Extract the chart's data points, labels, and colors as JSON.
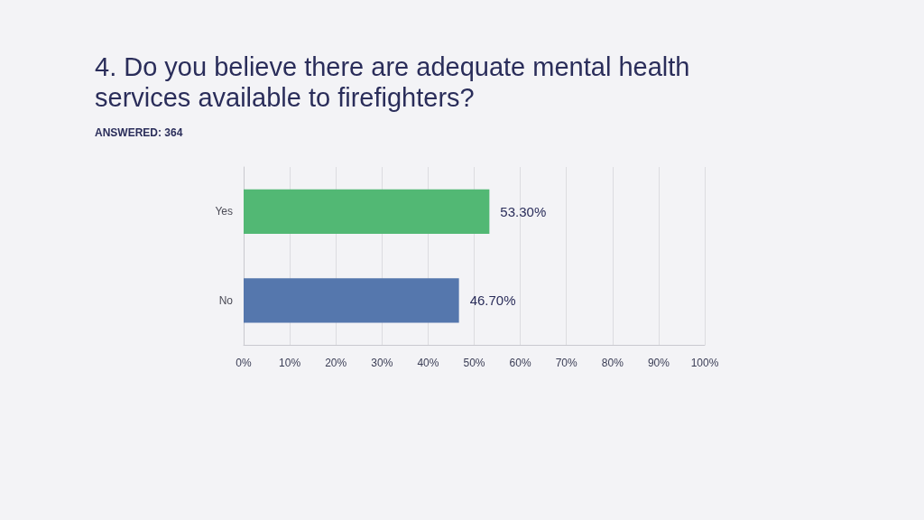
{
  "chart_data": {
    "type": "bar",
    "orientation": "horizontal",
    "title": "4. Do you believe there are adequate mental health services available to firefighters?",
    "subtitle": "ANSWERED: 364",
    "categories": [
      "Yes",
      "No"
    ],
    "values": [
      53.3,
      46.7
    ],
    "colors": [
      "#52b874",
      "#5577ad"
    ],
    "value_labels": [
      "53.30%",
      "46.70%"
    ],
    "xlim": [
      0,
      100
    ],
    "xticks": [
      {
        "value": 0,
        "label": "0%"
      },
      {
        "value": 10,
        "label": "10%"
      },
      {
        "value": 20,
        "label": "20%"
      },
      {
        "value": 30,
        "label": "30%"
      },
      {
        "value": 40,
        "label": "40%"
      },
      {
        "value": 50,
        "label": "50%"
      },
      {
        "value": 60,
        "label": "60%"
      },
      {
        "value": 70,
        "label": "70%"
      },
      {
        "value": 80,
        "label": "80%"
      },
      {
        "value": 90,
        "label": "90%"
      },
      {
        "value": 100,
        "label": "100%"
      }
    ],
    "grid": "x"
  }
}
